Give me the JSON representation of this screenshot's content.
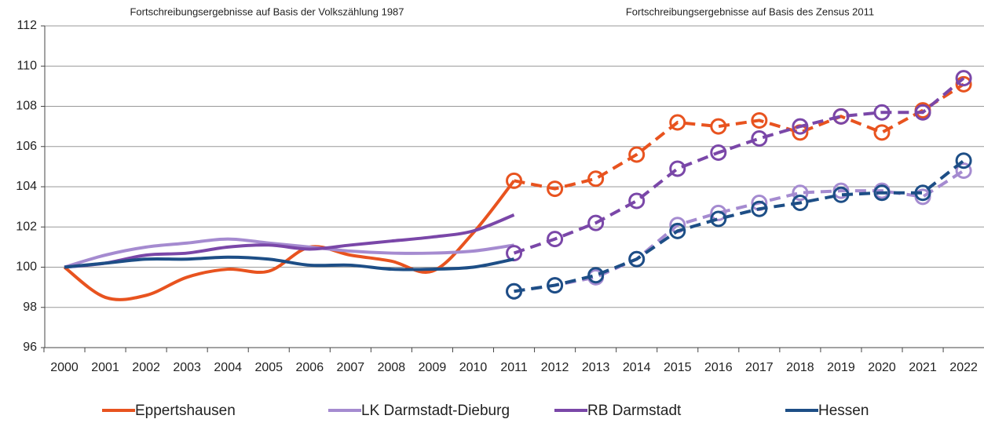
{
  "chart_data": {
    "type": "line",
    "annotations": [
      "Fortschreibungsergebnisse auf Basis der Volkszählung 1987",
      "Fortschreibungsergebnisse auf Basis des Zensus 2011"
    ],
    "categories": [
      "2000",
      "2001",
      "2002",
      "2003",
      "2004",
      "2005",
      "2006",
      "2007",
      "2008",
      "2009",
      "2010",
      "2011",
      "2012",
      "2013",
      "2014",
      "2015",
      "2016",
      "2017",
      "2018",
      "2019",
      "2020",
      "2021",
      "2022"
    ],
    "series": [
      {
        "name": "Eppertshausen",
        "color": "#e8531f",
        "values": [
          100,
          98.5,
          98.6,
          99.5,
          99.9,
          99.8,
          101.0,
          100.6,
          100.3,
          99.8,
          101.7,
          104.3,
          null,
          null,
          null,
          null,
          null,
          null,
          null,
          null,
          null,
          null,
          null
        ],
        "values_2011": [
          null,
          null,
          null,
          null,
          null,
          null,
          null,
          null,
          null,
          null,
          null,
          104.3,
          103.9,
          104.4,
          105.6,
          107.2,
          107.0,
          107.3,
          106.7,
          107.5,
          106.7,
          107.8,
          109.1
        ]
      },
      {
        "name": "LK Darmstadt-Dieburg",
        "color": "#a58bd0",
        "values": [
          100,
          100.6,
          101.0,
          101.2,
          101.4,
          101.2,
          101.0,
          100.8,
          100.7,
          100.7,
          100.8,
          101.1,
          null,
          null,
          null,
          null,
          null,
          null,
          null,
          null,
          null,
          null,
          null
        ],
        "values_2011": [
          null,
          null,
          null,
          null,
          null,
          null,
          null,
          null,
          null,
          null,
          null,
          98.8,
          99.1,
          99.5,
          100.4,
          102.1,
          102.7,
          103.2,
          103.7,
          103.8,
          103.8,
          103.5,
          104.8
        ]
      },
      {
        "name": "RB Darmstadt",
        "color": "#7a47a8",
        "values": [
          100,
          100.2,
          100.6,
          100.7,
          101.0,
          101.1,
          100.9,
          101.1,
          101.3,
          101.5,
          101.8,
          102.6,
          null,
          null,
          null,
          null,
          null,
          null,
          null,
          null,
          null,
          null,
          null
        ],
        "values_2011": [
          null,
          null,
          null,
          null,
          null,
          null,
          null,
          null,
          null,
          null,
          null,
          100.7,
          101.4,
          102.2,
          103.3,
          104.9,
          105.7,
          106.4,
          107.0,
          107.5,
          107.7,
          107.7,
          109.4
        ]
      },
      {
        "name": "Hessen",
        "color": "#1d4e86",
        "values": [
          100,
          100.2,
          100.4,
          100.4,
          100.5,
          100.4,
          100.1,
          100.1,
          99.9,
          99.9,
          100.0,
          100.4,
          null,
          null,
          null,
          null,
          null,
          null,
          null,
          null,
          null,
          null,
          null
        ],
        "values_2011": [
          null,
          null,
          null,
          null,
          null,
          null,
          null,
          null,
          null,
          null,
          null,
          98.8,
          99.1,
          99.6,
          100.4,
          101.8,
          102.4,
          102.9,
          103.2,
          103.6,
          103.7,
          103.7,
          105.3
        ]
      }
    ],
    "ylim": [
      96,
      112
    ],
    "yticks": [
      96,
      98,
      100,
      102,
      104,
      106,
      108,
      110,
      112
    ],
    "grid": true,
    "legend_position": "bottom"
  }
}
